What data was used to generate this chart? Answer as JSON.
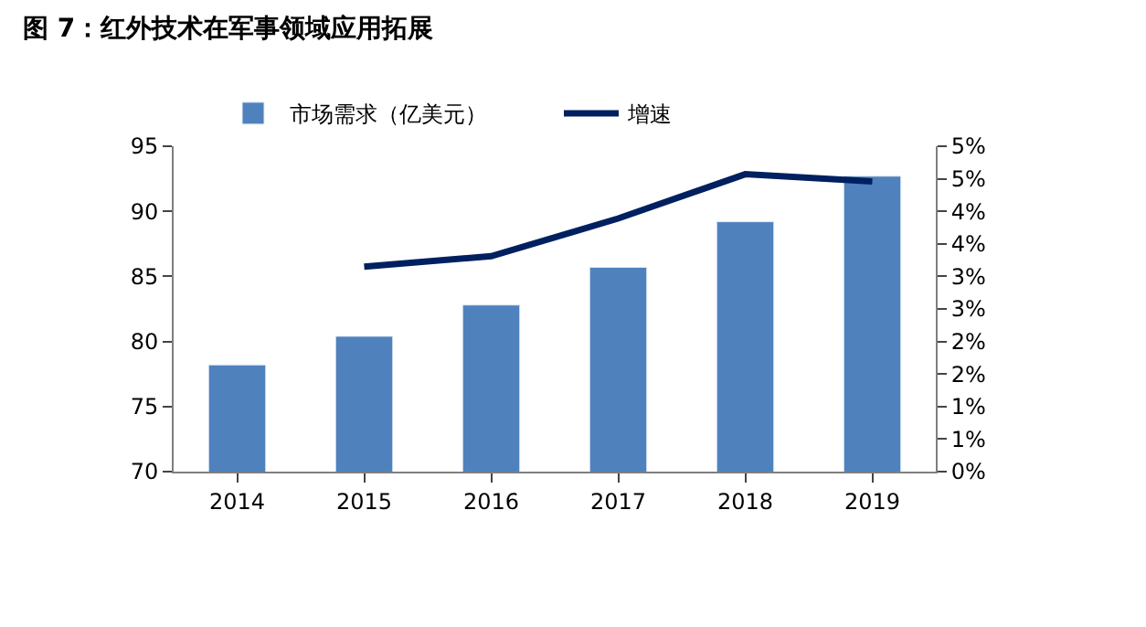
{
  "chart_data": {
    "type": "bar",
    "title": "图 7：红外技术在军事领域应用拓展",
    "categories": [
      "2014",
      "2015",
      "2016",
      "2017",
      "2018",
      "2019"
    ],
    "series": [
      {
        "name": "市场需求（亿美元）",
        "color": "#4f81bd",
        "values": [
          78.2,
          80.4,
          82.8,
          85.7,
          89.2,
          92.7
        ]
      },
      {
        "name": "增速",
        "type": "line",
        "axis": "y2",
        "color": "#002060",
        "values": [
          null,
          3.15,
          3.31,
          3.89,
          4.57,
          4.46
        ]
      }
    ],
    "ylim": [
      70,
      95
    ],
    "yticks": [
      70,
      75,
      80,
      85,
      90,
      95
    ],
    "y2lim": [
      0,
      5
    ],
    "y2ticks": [
      {
        "value": 0,
        "label": "0%"
      },
      {
        "value": 0.5,
        "label": "1%"
      },
      {
        "value": 1,
        "label": "1%"
      },
      {
        "value": 1.5,
        "label": "2%"
      },
      {
        "value": 2,
        "label": "2%"
      },
      {
        "value": 2.5,
        "label": "3%"
      },
      {
        "value": 3,
        "label": "3%"
      },
      {
        "value": 3.5,
        "label": "4%"
      },
      {
        "value": 4,
        "label": "4%"
      },
      {
        "value": 4.5,
        "label": "5%"
      },
      {
        "value": 5,
        "label": "5%"
      }
    ],
    "legend": "top",
    "marker": "none",
    "line_style": "solid"
  }
}
